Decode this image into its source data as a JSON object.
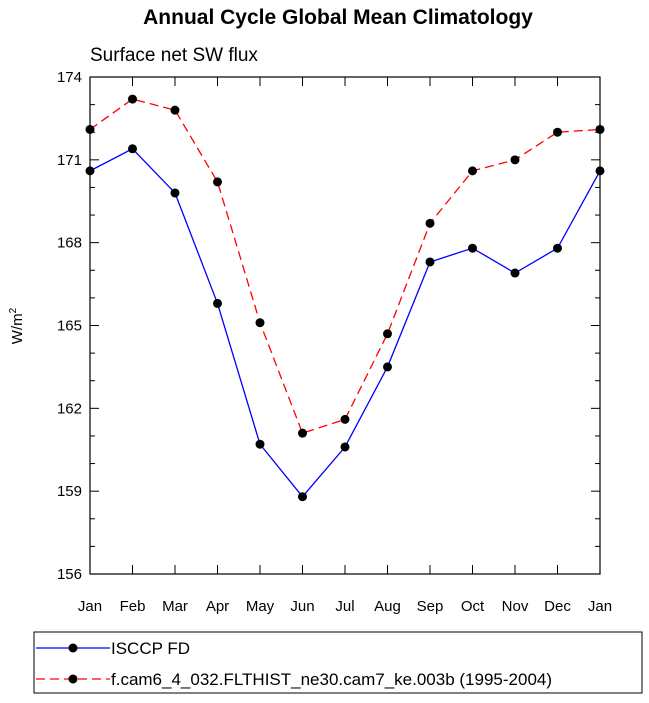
{
  "chart_data": {
    "type": "line",
    "title": "Annual Cycle Global Mean Climatology",
    "subtitle": "Surface net SW flux",
    "ylabel_main": "W/m",
    "ylabel_sup": "2",
    "xlabel": "",
    "categories": [
      "Jan",
      "Feb",
      "Mar",
      "Apr",
      "May",
      "Jun",
      "Jul",
      "Aug",
      "Sep",
      "Oct",
      "Nov",
      "Dec",
      "Jan"
    ],
    "yticks": [
      "156",
      "159",
      "162",
      "165",
      "168",
      "171",
      "174"
    ],
    "ylim": [
      156,
      174
    ],
    "grid": false,
    "legend_position": "bottom",
    "series": [
      {
        "name": "ISCCP FD",
        "color": "#0000ff",
        "dash": "solid",
        "values": [
          170.6,
          171.4,
          169.8,
          165.8,
          160.7,
          158.8,
          160.6,
          163.5,
          167.3,
          167.8,
          166.9,
          167.8,
          170.6
        ]
      },
      {
        "name": "f.cam6_4_032.FLTHIST_ne30.cam7_ke.003b (1995-2004)",
        "color": "#ff0000",
        "dash": "dashed",
        "values": [
          172.1,
          173.2,
          172.8,
          170.2,
          165.1,
          161.1,
          161.6,
          164.7,
          168.7,
          170.6,
          171.0,
          172.0,
          172.1
        ]
      }
    ]
  }
}
